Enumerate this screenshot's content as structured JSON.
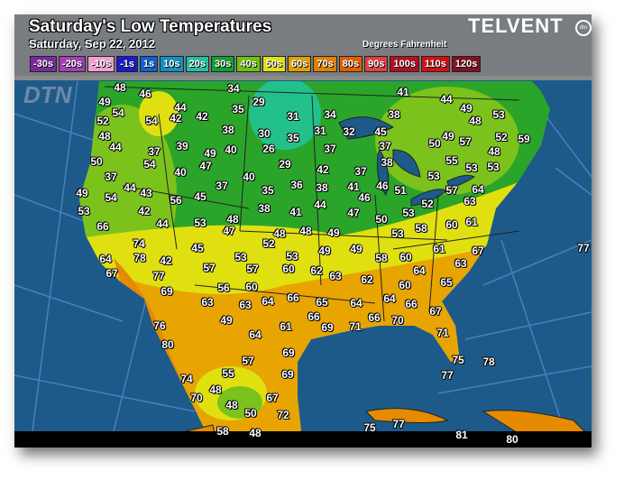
{
  "header": {
    "title": "Saturday's Low Temperatures",
    "date": "Saturday, Sep 22, 2012",
    "units": "Degrees Fahrenheit",
    "brand": "TELVENT",
    "brand_badge": "dtn",
    "watermark": "DTN"
  },
  "legend": [
    {
      "label": "-30s",
      "color": "#7b2a9a"
    },
    {
      "label": "-20s",
      "color": "#a23fb4"
    },
    {
      "label": "-10s",
      "color": "#f0a0d0"
    },
    {
      "label": "-1s",
      "color": "#1a1ac8"
    },
    {
      "label": "1s",
      "color": "#1060d0"
    },
    {
      "label": "10s",
      "color": "#1090c0"
    },
    {
      "label": "20s",
      "color": "#20c0a0"
    },
    {
      "label": "30s",
      "color": "#10a030"
    },
    {
      "label": "40s",
      "color": "#70c010"
    },
    {
      "label": "50s",
      "color": "#e0e010"
    },
    {
      "label": "60s",
      "color": "#e0a000"
    },
    {
      "label": "70s",
      "color": "#e08000"
    },
    {
      "label": "80s",
      "color": "#e06000"
    },
    {
      "label": "90s",
      "color": "#e04040"
    },
    {
      "label": "100s",
      "color": "#b01020"
    },
    {
      "label": "110s",
      "color": "#d01010"
    },
    {
      "label": "120s",
      "color": "#801020"
    }
  ],
  "temperatures": [
    "48",
    "46",
    "34",
    "29",
    "41",
    "44",
    "49",
    "49",
    "44",
    "35",
    "31",
    "34",
    "38",
    "48",
    "53",
    "54",
    "54",
    "42",
    "42",
    "52",
    "38",
    "30",
    "35",
    "31",
    "32",
    "45",
    "52",
    "59",
    "48",
    "39",
    "40",
    "26",
    "37",
    "37",
    "50",
    "49",
    "57",
    "48",
    "44",
    "37",
    "49",
    "47",
    "29",
    "38",
    "55",
    "53",
    "53",
    "50",
    "54",
    "40",
    "42",
    "37",
    "53",
    "37",
    "37",
    "40",
    "36",
    "38",
    "41",
    "46",
    "51",
    "57",
    "64",
    "49",
    "54",
    "44",
    "43",
    "56",
    "45",
    "35",
    "46",
    "52",
    "63",
    "53",
    "42",
    "38",
    "41",
    "44",
    "47",
    "50",
    "53",
    "61",
    "66",
    "44",
    "53",
    "48",
    "47",
    "48",
    "48",
    "49",
    "58",
    "60",
    "74",
    "52",
    "53",
    "53",
    "49",
    "49",
    "61",
    "67",
    "64",
    "78",
    "42",
    "45",
    "53",
    "58",
    "60",
    "63",
    "67",
    "77",
    "57",
    "57",
    "60",
    "62",
    "63",
    "64",
    "69",
    "56",
    "60",
    "62",
    "65",
    "63",
    "63",
    "64",
    "66",
    "65",
    "64",
    "64",
    "60",
    "66",
    "67",
    "49",
    "61",
    "66",
    "69",
    "71",
    "66",
    "70",
    "76",
    "64",
    "71",
    "80",
    "57",
    "69",
    "75",
    "78",
    "74",
    "55",
    "69",
    "77",
    "70",
    "48",
    "67",
    "48",
    "50",
    "72",
    "75",
    "77",
    "58",
    "48",
    "81",
    "80",
    "77"
  ],
  "colors": {
    "ocean": "#1d5a8a",
    "header": "#808080"
  }
}
